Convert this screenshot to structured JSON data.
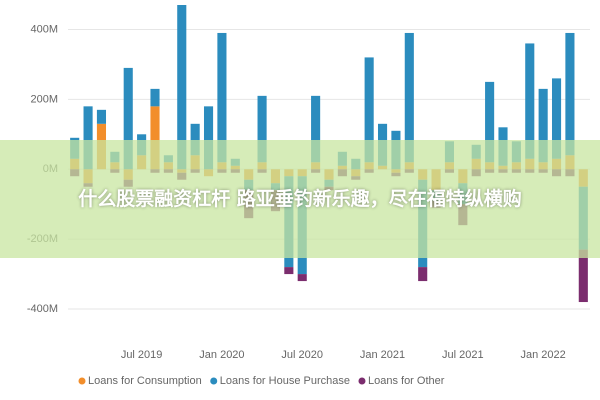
{
  "chart_data": {
    "type": "stacked_bar",
    "banner": "什么股票融资杠杆 路亚垂钓新乐趣，尽在福特纵横购",
    "categories": [
      null,
      null,
      null,
      null,
      null,
      "Jul 2019",
      null,
      null,
      null,
      null,
      null,
      "Jan 2020",
      null,
      null,
      null,
      null,
      null,
      "Jul 2020",
      null,
      null,
      null,
      null,
      null,
      "Jan 2021",
      null,
      null,
      null,
      null,
      null,
      "Jul 2021",
      null,
      null,
      null,
      null,
      null,
      "Jan 2022",
      null,
      null,
      null
    ],
    "series": [
      {
        "name": "Loans for Consumption",
        "color": "#f28e2b",
        "values": [
          30,
          -40,
          130,
          20,
          -30,
          40,
          180,
          20,
          -10,
          40,
          -20,
          20,
          10,
          -30,
          20,
          -40,
          -20,
          -20,
          20,
          -30,
          10,
          -20,
          20,
          10,
          -10,
          20,
          -30,
          -60,
          20,
          -40,
          30,
          20,
          10,
          20,
          30,
          20,
          30,
          40,
          -50
        ]
      },
      {
        "name": "Loans for House Purchase",
        "color": "#2b8cbe",
        "values": [
          60,
          180,
          40,
          30,
          290,
          60,
          50,
          20,
          470,
          90,
          180,
          370,
          20,
          -30,
          190,
          -20,
          -260,
          -280,
          190,
          -20,
          40,
          30,
          300,
          120,
          110,
          370,
          -250,
          -30,
          60,
          -60,
          40,
          230,
          110,
          60,
          330,
          210,
          230,
          350,
          -180
        ]
      },
      {
        "name": "Loans for Other",
        "color": "#7b2d6e",
        "values": [
          -20,
          -10,
          0,
          -10,
          -20,
          0,
          -10,
          -10,
          -20,
          -10,
          0,
          -10,
          -10,
          -80,
          -10,
          -60,
          -20,
          -20,
          -10,
          -10,
          -20,
          -10,
          -10,
          0,
          -10,
          -10,
          -40,
          -20,
          -10,
          -60,
          -20,
          -10,
          -10,
          -10,
          -10,
          -10,
          -20,
          -20,
          -150
        ]
      }
    ],
    "ylim": [
      -460,
      470
    ],
    "yticks": [
      {
        "value": -400,
        "label": "-400M"
      },
      {
        "value": -200,
        "label": "-200M"
      },
      {
        "value": 0,
        "label": "0M"
      },
      {
        "value": 200,
        "label": "200M"
      },
      {
        "value": 400,
        "label": "400M"
      }
    ],
    "grid": true
  }
}
